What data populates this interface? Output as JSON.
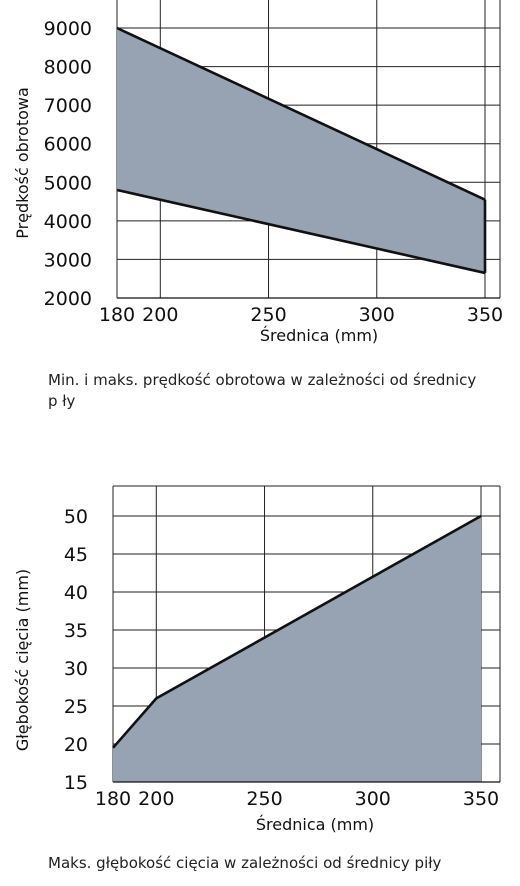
{
  "chart_data": [
    {
      "type": "area",
      "xlabel": "Średnica (mm)",
      "ylabel": "Prędkość obrotowa",
      "x_ticks": [
        180,
        200,
        250,
        300,
        350
      ],
      "y_ticks": [
        2000,
        3000,
        4000,
        5000,
        6000,
        7000,
        8000,
        9000
      ],
      "xlim": [
        180,
        350
      ],
      "ylim": [
        2000,
        9000
      ],
      "grid": true,
      "fill_color": "#97a3b3",
      "line_color": "#111111",
      "series": [
        {
          "role": "max",
          "x": [
            180,
            350
          ],
          "y": [
            9000,
            4550
          ]
        },
        {
          "role": "min",
          "x": [
            180,
            350
          ],
          "y": [
            4800,
            2650
          ]
        }
      ],
      "caption": "Min. i maks. prędkość obrotowa w zależności od średnicy p ły"
    },
    {
      "type": "area",
      "xlabel": "Średnica (mm)",
      "ylabel": "Głębokość cięcia (mm)",
      "x_ticks": [
        180,
        200,
        250,
        300,
        350
      ],
      "y_ticks": [
        15,
        20,
        25,
        30,
        35,
        40,
        45,
        50
      ],
      "xlim": [
        180,
        350
      ],
      "ylim": [
        15,
        50
      ],
      "grid": true,
      "fill_color": "#97a3b3",
      "line_color": "#111111",
      "series": [
        {
          "role": "max",
          "x": [
            180,
            200,
            300,
            350
          ],
          "y": [
            19.5,
            26,
            42,
            50
          ]
        }
      ],
      "caption": "Maks. głębokość cięcia w zależności od średnicy piły"
    }
  ]
}
